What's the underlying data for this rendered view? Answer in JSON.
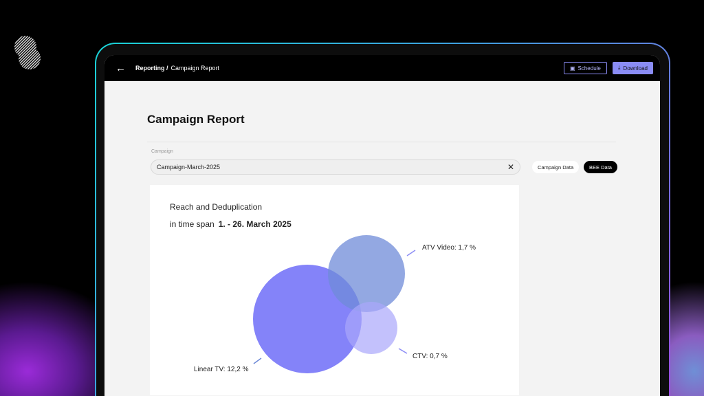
{
  "header": {
    "breadcrumb_parent": "Reporting /",
    "breadcrumb_current": "Campaign Report",
    "schedule_label": "Schedule",
    "download_label": "Download"
  },
  "page": {
    "title": "Campaign Report",
    "campaign_label": "Campaign",
    "campaign_value": "Campaign-March-2025",
    "toggle_campaign": "Campaign Data",
    "toggle_bee": "BEE Data"
  },
  "colors": {
    "accent": "#8a8cf4",
    "linear": "#6f6df8",
    "atv": "#7d95dc",
    "ctv": "#aaa7fb"
  },
  "chart_data": {
    "type": "venn",
    "title": "Reach and Deduplication",
    "subtitle_prefix": "in time span",
    "subtitle_range": "1. - 26. March 2025",
    "sets": [
      {
        "name": "Linear TV",
        "value": 12.2,
        "label": "Linear TV: 12,2 %"
      },
      {
        "name": "ATV Video",
        "value": 1.7,
        "label": "ATV Video: 1,7 %"
      },
      {
        "name": "CTV",
        "value": 0.7,
        "label": "CTV: 0,7 %"
      }
    ]
  }
}
